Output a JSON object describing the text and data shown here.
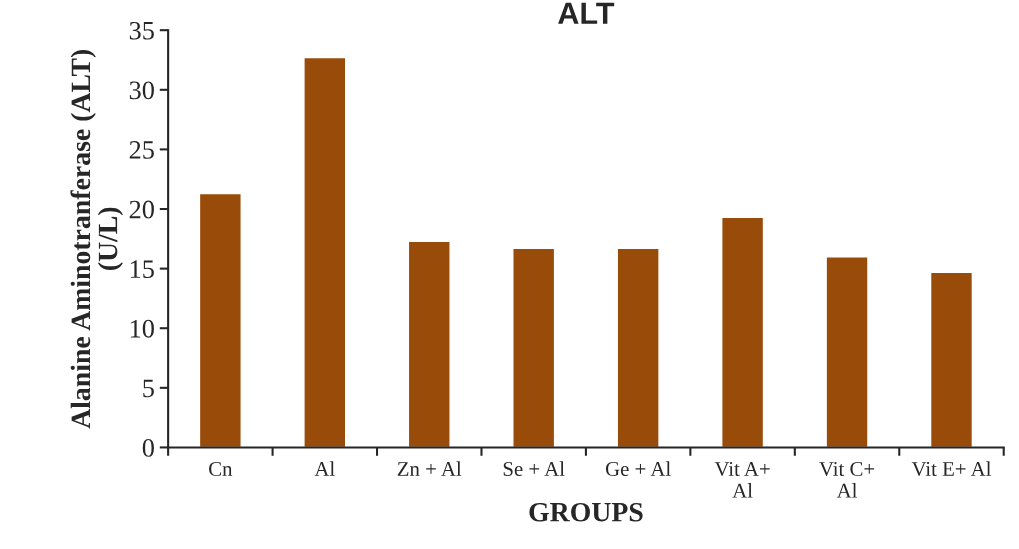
{
  "chart_data": {
    "type": "bar",
    "title": "ALT",
    "xlabel": "GROUPS",
    "ylabel": "Alanine Aminotranferase (ALT)\n(U/L)",
    "categories": [
      "Cn",
      "Al",
      "Zn + Al",
      "Se + Al",
      "Ge + Al",
      "Vit A+\nAl",
      "Vit C+\nAl",
      "Vit E+ Al"
    ],
    "values": [
      21.3,
      32.7,
      17.3,
      16.7,
      16.7,
      19.3,
      16.0,
      14.7
    ],
    "color": "#994c0a",
    "ylim": [
      0,
      35
    ],
    "yticks": [
      0,
      5,
      10,
      15,
      20,
      25,
      30,
      35
    ],
    "grid": false
  }
}
